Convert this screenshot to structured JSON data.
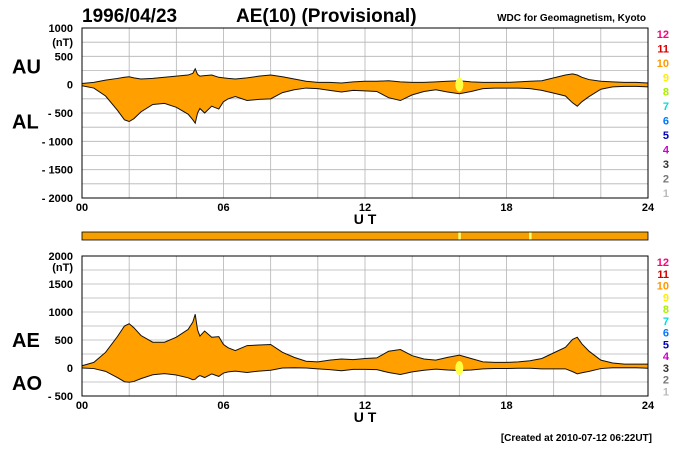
{
  "header": {
    "date": "1996/04/23",
    "title": "AE(10) (Provisional)",
    "source": "WDC for Geomagnetism, Kyoto"
  },
  "footer": {
    "created": "[Created at 2010-07-12 06:22UT]"
  },
  "colors": {
    "fill": "#ff9f00",
    "outline": "#111111",
    "grid": "#b4b4b4",
    "highlight": "#ffff44",
    "status_bar": "#f5a000",
    "status_mark": "#ffff77"
  },
  "station_scale": [
    {
      "label": "12",
      "color": "#ff0077"
    },
    {
      "label": "11",
      "color": "#d40000"
    },
    {
      "label": "10",
      "color": "#ff9900"
    },
    {
      "label": "9",
      "color": "#ffee00"
    },
    {
      "label": "8",
      "color": "#aaee00"
    },
    {
      "label": "7",
      "color": "#00dddd"
    },
    {
      "label": "6",
      "color": "#0077ff"
    },
    {
      "label": "5",
      "color": "#0000bb"
    },
    {
      "label": "4",
      "color": "#cc00cc"
    },
    {
      "label": "3",
      "color": "#333333"
    },
    {
      "label": "2",
      "color": "#777777"
    },
    {
      "label": "1",
      "color": "#bbbbbb"
    }
  ],
  "status_bar_marks": [
    16.0,
    19.0
  ],
  "chart_data": [
    {
      "type": "area",
      "series_labels": [
        "AU",
        "AL"
      ],
      "xlabel": "U T",
      "ylabel": "(nT)",
      "xlim": [
        0,
        24
      ],
      "ylim": [
        -2000,
        1000
      ],
      "xticks": [
        "00",
        "06",
        "12",
        "18",
        "24"
      ],
      "yticks": [
        "1000",
        "500",
        "0",
        "- 500",
        "- 1000",
        "- 1500",
        "- 2000"
      ],
      "x": [
        0,
        0.5,
        1,
        1.5,
        1.8,
        2,
        2.2,
        2.5,
        3,
        3.5,
        4,
        4.5,
        4.7,
        4.8,
        4.9,
        5,
        5.2,
        5.5,
        5.8,
        6,
        6.2,
        6.5,
        7,
        7.5,
        8,
        8.5,
        9,
        9.5,
        10,
        10.5,
        11,
        11.5,
        12,
        12.5,
        13,
        13.5,
        14,
        14.5,
        15,
        15.5,
        16,
        16.5,
        17,
        17.5,
        18,
        18.5,
        19,
        19.5,
        20,
        20.5,
        20.8,
        21,
        21.2,
        21.5,
        22,
        22.5,
        23,
        23.5,
        24
      ],
      "series": [
        {
          "name": "AU",
          "values": [
            20,
            40,
            80,
            110,
            130,
            140,
            120,
            100,
            110,
            130,
            150,
            170,
            200,
            280,
            180,
            150,
            160,
            170,
            130,
            120,
            110,
            100,
            120,
            150,
            170,
            140,
            100,
            60,
            40,
            40,
            30,
            50,
            60,
            60,
            70,
            50,
            40,
            40,
            50,
            60,
            70,
            50,
            40,
            40,
            40,
            50,
            60,
            70,
            120,
            170,
            190,
            170,
            130,
            90,
            60,
            50,
            40,
            40,
            30
          ]
        },
        {
          "name": "AL",
          "values": [
            -20,
            -60,
            -200,
            -450,
            -620,
            -650,
            -600,
            -480,
            -350,
            -330,
            -400,
            -520,
            -620,
            -680,
            -500,
            -420,
            -500,
            -380,
            -430,
            -300,
            -250,
            -210,
            -280,
            -260,
            -250,
            -140,
            -90,
            -60,
            -70,
            -100,
            -130,
            -100,
            -110,
            -120,
            -230,
            -280,
            -180,
            -120,
            -90,
            -130,
            -160,
            -120,
            -70,
            -60,
            -60,
            -60,
            -70,
            -100,
            -150,
            -200,
            -320,
            -380,
            -300,
            -210,
            -80,
            -40,
            -30,
            -30,
            -40
          ]
        }
      ]
    },
    {
      "type": "area",
      "series_labels": [
        "AE",
        "AO"
      ],
      "xlabel": "U T",
      "ylabel": "(nT)",
      "xlim": [
        0,
        24
      ],
      "ylim": [
        -500,
        2000
      ],
      "xticks": [
        "00",
        "06",
        "12",
        "18",
        "24"
      ],
      "yticks": [
        "2000",
        "(nT)",
        "1500",
        "1000",
        "500",
        "0",
        "- 500"
      ],
      "x": [
        0,
        0.5,
        1,
        1.5,
        1.8,
        2,
        2.2,
        2.5,
        3,
        3.5,
        4,
        4.5,
        4.7,
        4.8,
        4.9,
        5,
        5.2,
        5.5,
        5.8,
        6,
        6.2,
        6.5,
        7,
        7.5,
        8,
        8.5,
        9,
        9.5,
        10,
        10.5,
        11,
        11.5,
        12,
        12.5,
        13,
        13.5,
        14,
        14.5,
        15,
        15.5,
        16,
        16.5,
        17,
        17.5,
        18,
        18.5,
        19,
        19.5,
        20,
        20.5,
        20.8,
        21,
        21.2,
        21.5,
        22,
        22.5,
        23,
        23.5,
        24
      ],
      "series": [
        {
          "name": "AE",
          "values": [
            40,
            100,
            280,
            560,
            750,
            790,
            720,
            580,
            460,
            460,
            550,
            690,
            820,
            960,
            680,
            570,
            660,
            550,
            560,
            420,
            360,
            310,
            400,
            410,
            420,
            280,
            190,
            120,
            110,
            140,
            160,
            150,
            170,
            180,
            300,
            330,
            220,
            160,
            140,
            190,
            230,
            170,
            110,
            100,
            100,
            110,
            130,
            170,
            270,
            370,
            510,
            550,
            430,
            300,
            140,
            90,
            70,
            70,
            70
          ]
        },
        {
          "name": "AO",
          "values": [
            0,
            -10,
            -60,
            -170,
            -245,
            -255,
            -240,
            -190,
            -120,
            -100,
            -125,
            -175,
            -210,
            -200,
            -160,
            -135,
            -170,
            -105,
            -150,
            -90,
            -70,
            -55,
            -80,
            -55,
            -40,
            0,
            5,
            0,
            -15,
            -30,
            -50,
            -25,
            -25,
            -30,
            -80,
            -115,
            -70,
            -40,
            -20,
            -35,
            -45,
            -35,
            -15,
            -10,
            -10,
            -5,
            -5,
            -15,
            -15,
            -15,
            -65,
            -105,
            -85,
            -60,
            -10,
            5,
            5,
            5,
            -5
          ]
        }
      ]
    }
  ]
}
